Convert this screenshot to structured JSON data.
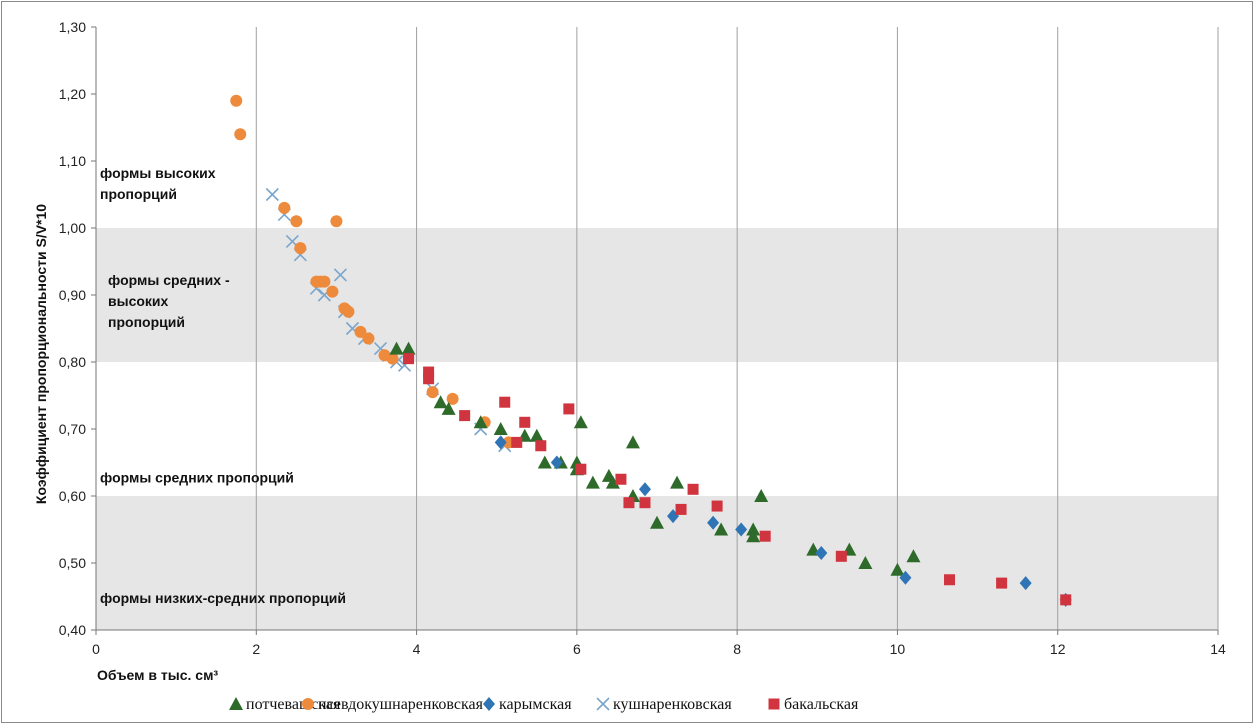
{
  "chart_data": {
    "type": "scatter",
    "title": "",
    "xlabel": "Объем  в  тыс. см³",
    "ylabel": "Коэффициент пропорциональности S/V*10",
    "xlim": [
      0,
      14
    ],
    "ylim": [
      0.4,
      1.3
    ],
    "x_ticks": [
      "0",
      "2",
      "4",
      "6",
      "8",
      "10",
      "12",
      "14"
    ],
    "y_ticks": [
      "0,40",
      "0,50",
      "0,60",
      "0,70",
      "0,80",
      "0,90",
      "1,00",
      "1,10",
      "1,20",
      "1,30"
    ],
    "grid": "vertical",
    "legend_position": "bottom",
    "bands": [
      {
        "y_from": 0.8,
        "y_to": 1.0,
        "color": "#e6e6e6"
      },
      {
        "y_from": 0.4,
        "y_to": 0.6,
        "color": "#e6e6e6"
      }
    ],
    "annotations": [
      {
        "lines": [
          "формы высоких",
          "пропорций"
        ],
        "x": 0.05,
        "y": 1.075
      },
      {
        "lines": [
          "формы средних -",
          "высоких",
          "пропорций"
        ],
        "x": 0.15,
        "y": 0.915
      },
      {
        "lines": [
          "формы средних пропорций"
        ],
        "x": 0.05,
        "y": 0.62
      },
      {
        "lines": [
          "формы низких-средних пропорций"
        ],
        "x": 0.05,
        "y": 0.44
      }
    ],
    "series": [
      {
        "name": "потчевашская",
        "marker": "triangle",
        "color": "#2e6b2a",
        "points": [
          [
            3.75,
            0.82
          ],
          [
            3.9,
            0.82
          ],
          [
            4.3,
            0.74
          ],
          [
            4.4,
            0.73
          ],
          [
            4.8,
            0.71
          ],
          [
            5.05,
            0.7
          ],
          [
            5.35,
            0.69
          ],
          [
            5.5,
            0.69
          ],
          [
            5.6,
            0.65
          ],
          [
            5.8,
            0.65
          ],
          [
            6.0,
            0.65
          ],
          [
            6.05,
            0.71
          ],
          [
            6.0,
            0.64
          ],
          [
            6.2,
            0.62
          ],
          [
            6.4,
            0.63
          ],
          [
            6.45,
            0.62
          ],
          [
            6.7,
            0.68
          ],
          [
            6.7,
            0.6
          ],
          [
            7.0,
            0.56
          ],
          [
            7.25,
            0.62
          ],
          [
            7.8,
            0.55
          ],
          [
            8.2,
            0.54
          ],
          [
            8.2,
            0.55
          ],
          [
            8.3,
            0.6
          ],
          [
            8.95,
            0.52
          ],
          [
            9.4,
            0.52
          ],
          [
            9.6,
            0.5
          ],
          [
            10.0,
            0.49
          ],
          [
            10.2,
            0.51
          ]
        ]
      },
      {
        "name": "псевдокушнаренковская",
        "marker": "circle",
        "color": "#ee8a3c",
        "points": [
          [
            1.75,
            1.19
          ],
          [
            1.8,
            1.14
          ],
          [
            2.35,
            1.03
          ],
          [
            2.5,
            1.01
          ],
          [
            2.55,
            0.97
          ],
          [
            2.75,
            0.92
          ],
          [
            2.8,
            0.92
          ],
          [
            2.85,
            0.92
          ],
          [
            2.95,
            0.905
          ],
          [
            3.0,
            1.01
          ],
          [
            3.1,
            0.88
          ],
          [
            3.15,
            0.875
          ],
          [
            3.3,
            0.845
          ],
          [
            3.4,
            0.835
          ],
          [
            3.6,
            0.81
          ],
          [
            3.7,
            0.805
          ],
          [
            4.2,
            0.755
          ],
          [
            4.45,
            0.745
          ],
          [
            4.85,
            0.71
          ],
          [
            5.15,
            0.68
          ]
        ]
      },
      {
        "name": "карымская",
        "marker": "diamond",
        "color": "#2f74b5",
        "points": [
          [
            5.05,
            0.68
          ],
          [
            5.75,
            0.65
          ],
          [
            6.85,
            0.61
          ],
          [
            7.2,
            0.57
          ],
          [
            7.7,
            0.56
          ],
          [
            8.05,
            0.55
          ],
          [
            9.05,
            0.515
          ],
          [
            10.1,
            0.478
          ],
          [
            11.6,
            0.47
          ],
          [
            12.1,
            0.445
          ]
        ]
      },
      {
        "name": "кушнаренковская",
        "marker": "cross",
        "color": "#7aa6cc",
        "points": [
          [
            2.2,
            1.05
          ],
          [
            2.35,
            1.02
          ],
          [
            2.45,
            0.98
          ],
          [
            2.55,
            0.96
          ],
          [
            2.75,
            0.91
          ],
          [
            2.85,
            0.9
          ],
          [
            3.05,
            0.93
          ],
          [
            3.1,
            0.875
          ],
          [
            3.2,
            0.85
          ],
          [
            3.35,
            0.835
          ],
          [
            3.55,
            0.82
          ],
          [
            3.65,
            0.81
          ],
          [
            3.75,
            0.8
          ],
          [
            3.85,
            0.795
          ],
          [
            4.2,
            0.76
          ],
          [
            4.8,
            0.7
          ],
          [
            5.1,
            0.675
          ]
        ]
      },
      {
        "name": "бакальская",
        "marker": "square",
        "color": "#d0343f",
        "points": [
          [
            3.9,
            0.805
          ],
          [
            4.15,
            0.785
          ],
          [
            4.15,
            0.775
          ],
          [
            4.6,
            0.72
          ],
          [
            5.1,
            0.74
          ],
          [
            5.25,
            0.68
          ],
          [
            5.35,
            0.71
          ],
          [
            5.55,
            0.675
          ],
          [
            5.9,
            0.73
          ],
          [
            6.05,
            0.64
          ],
          [
            6.55,
            0.625
          ],
          [
            6.65,
            0.59
          ],
          [
            6.85,
            0.59
          ],
          [
            7.3,
            0.58
          ],
          [
            7.45,
            0.61
          ],
          [
            7.75,
            0.585
          ],
          [
            8.35,
            0.54
          ],
          [
            9.3,
            0.51
          ],
          [
            10.65,
            0.475
          ],
          [
            11.3,
            0.47
          ],
          [
            12.1,
            0.445
          ]
        ]
      }
    ]
  }
}
